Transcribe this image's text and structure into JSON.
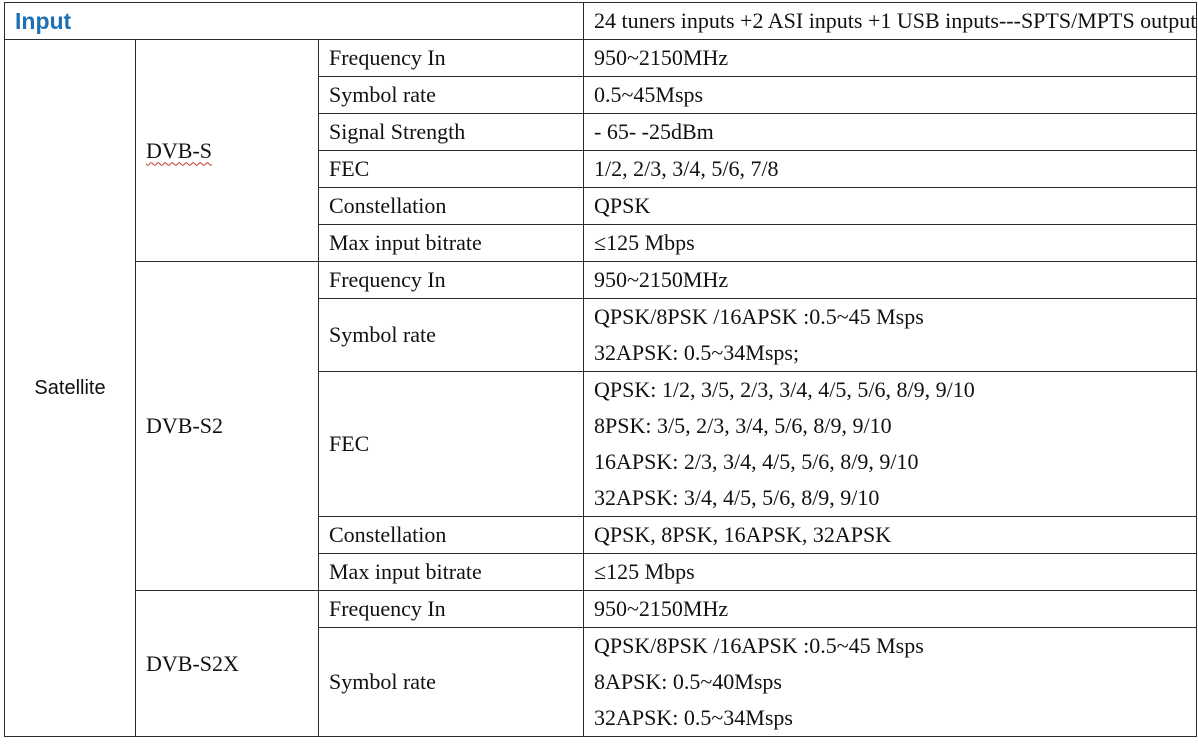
{
  "header": {
    "label": "Input",
    "value": "24 tuners inputs +2 ASI inputs +1 USB inputs---SPTS/MPTS output"
  },
  "type_label": "Satellite",
  "groups": {
    "dvbs": {
      "name": "DVB-S",
      "rows": [
        {
          "param": "Frequency In",
          "value": "950~2150MHz"
        },
        {
          "param": "Symbol rate",
          "value": "0.5~45Msps"
        },
        {
          "param": "Signal Strength",
          "value": "- 65- -25dBm"
        },
        {
          "param": "FEC",
          "value": "1/2, 2/3, 3/4, 5/6, 7/8"
        },
        {
          "param": "Constellation",
          "value": "QPSK"
        },
        {
          "param": "Max input bitrate",
          "value": "≤125 Mbps"
        }
      ]
    },
    "dvbs2": {
      "name": "DVB-S2",
      "freq": {
        "param": "Frequency In",
        "value": "950~2150MHz"
      },
      "symbol": {
        "param": "Symbol rate",
        "lines": [
          "QPSK/8PSK /16APSK :0.5~45 Msps",
          "32APSK: 0.5~34Msps;"
        ]
      },
      "fec": {
        "param": "FEC",
        "lines": [
          "QPSK: 1/2, 3/5, 2/3, 3/4, 4/5, 5/6, 8/9, 9/10",
          "8PSK: 3/5, 2/3, 3/4, 5/6, 8/9, 9/10",
          "16APSK: 2/3, 3/4, 4/5, 5/6, 8/9, 9/10",
          "32APSK: 3/4, 4/5, 5/6, 8/9, 9/10"
        ]
      },
      "constellation": {
        "param": "Constellation",
        "value": "QPSK, 8PSK, 16APSK, 32APSK"
      },
      "bitrate": {
        "param": "Max input bitrate",
        "value": "≤125 Mbps"
      }
    },
    "dvbs2x": {
      "name": "DVB-S2X",
      "freq": {
        "param": "Frequency In",
        "value": "950~2150MHz"
      },
      "symbol": {
        "param": "Symbol rate",
        "lines": [
          "QPSK/8PSK /16APSK :0.5~45 Msps",
          "8APSK: 0.5~40Msps",
          "32APSK: 0.5~34Msps"
        ]
      }
    }
  }
}
